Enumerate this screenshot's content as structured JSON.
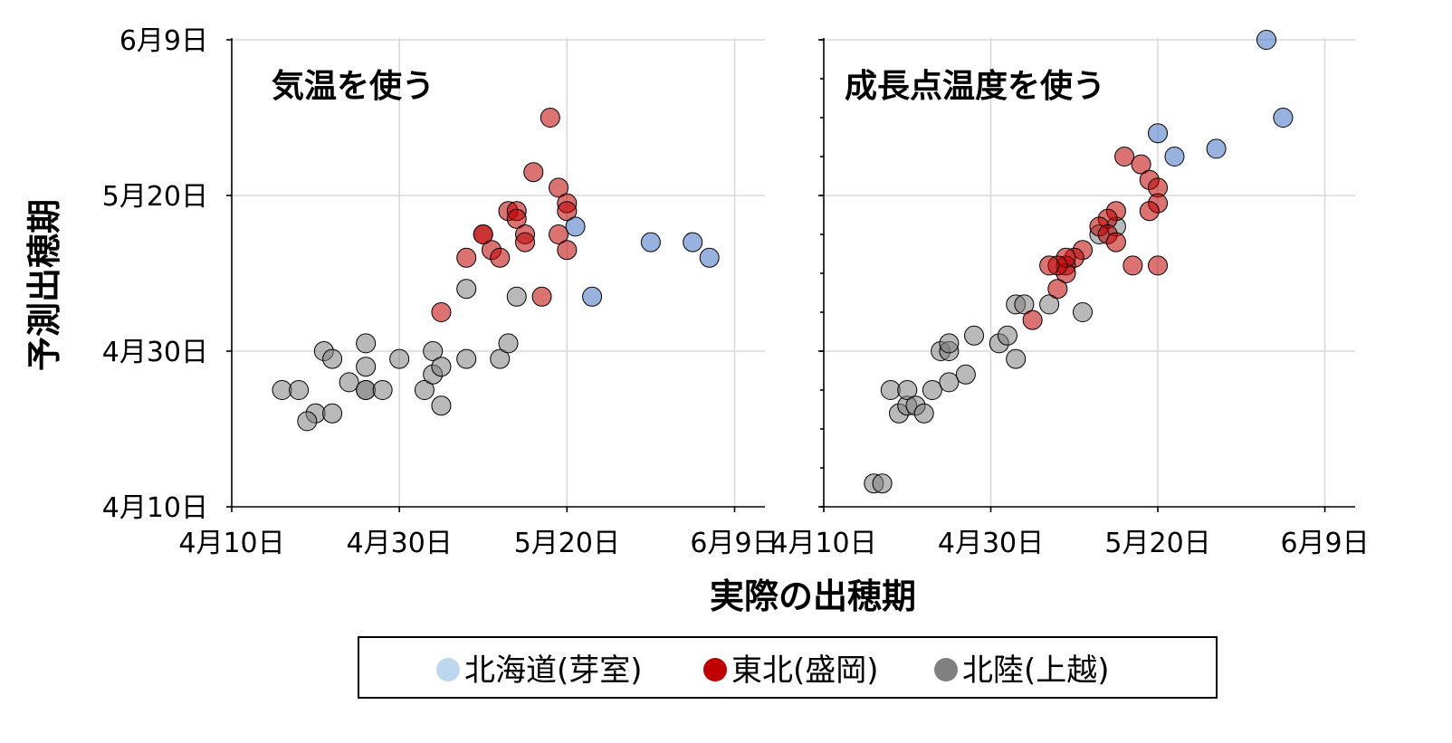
{
  "chart_data": [
    {
      "type": "scatter",
      "title": "気温を使う",
      "xlabel": "実際の出穂期",
      "ylabel": "予測出穂期",
      "x_ticks": [
        "4月10日",
        "4月30日",
        "5月20日",
        "6月9日"
      ],
      "y_ticks": [
        "4月10日",
        "4月30日",
        "5月20日",
        "6月9日"
      ],
      "xlim": [
        "2020-04-10",
        "2020-06-11"
      ],
      "ylim": [
        "2020-04-10",
        "2020-06-09"
      ],
      "grid": true,
      "series": [
        {
          "name": "北海道(芽室)",
          "color": "#4472c4",
          "points": [
            [
              "2020-05-21",
              "2020-05-16"
            ],
            [
              "2020-05-23",
              "2020-05-07"
            ],
            [
              "2020-05-30",
              "2020-05-14"
            ],
            [
              "2020-06-04",
              "2020-05-14"
            ],
            [
              "2020-06-06",
              "2020-05-12"
            ]
          ]
        },
        {
          "name": "東北(盛岡)",
          "color": "#c00000",
          "points": [
            [
              "2020-05-18",
              "2020-05-30"
            ],
            [
              "2020-05-16",
              "2020-05-23"
            ],
            [
              "2020-05-19",
              "2020-05-21"
            ],
            [
              "2020-05-20",
              "2020-05-19"
            ],
            [
              "2020-05-20",
              "2020-05-18"
            ],
            [
              "2020-05-13",
              "2020-05-18"
            ],
            [
              "2020-05-14",
              "2020-05-18"
            ],
            [
              "2020-05-14",
              "2020-05-17"
            ],
            [
              "2020-05-15",
              "2020-05-15"
            ],
            [
              "2020-05-15",
              "2020-05-14"
            ],
            [
              "2020-05-10",
              "2020-05-15"
            ],
            [
              "2020-05-11",
              "2020-05-13"
            ],
            [
              "2020-05-12",
              "2020-05-12"
            ],
            [
              "2020-05-08",
              "2020-05-12"
            ],
            [
              "2020-05-19",
              "2020-05-15"
            ],
            [
              "2020-05-20",
              "2020-05-13"
            ],
            [
              "2020-05-05",
              "2020-05-05"
            ],
            [
              "2020-05-17",
              "2020-05-07"
            ],
            [
              "2020-05-10",
              "2020-05-15"
            ]
          ]
        },
        {
          "name": "北陸(上越)",
          "color": "#808080",
          "points": [
            [
              "2020-04-16",
              "2020-04-25"
            ],
            [
              "2020-04-20",
              "2020-04-22"
            ],
            [
              "2020-04-18",
              "2020-04-25"
            ],
            [
              "2020-04-19",
              "2020-04-21"
            ],
            [
              "2020-04-22",
              "2020-04-22"
            ],
            [
              "2020-04-21",
              "2020-04-30"
            ],
            [
              "2020-04-22",
              "2020-04-29"
            ],
            [
              "2020-04-24",
              "2020-04-26"
            ],
            [
              "2020-04-26",
              "2020-04-25"
            ],
            [
              "2020-04-26",
              "2020-04-25"
            ],
            [
              "2020-04-26",
              "2020-04-28"
            ],
            [
              "2020-04-26",
              "2020-05-01"
            ],
            [
              "2020-04-28",
              "2020-04-25"
            ],
            [
              "2020-04-30",
              "2020-04-29"
            ],
            [
              "2020-05-03",
              "2020-04-25"
            ],
            [
              "2020-05-04",
              "2020-04-27"
            ],
            [
              "2020-05-04",
              "2020-04-30"
            ],
            [
              "2020-05-05",
              "2020-04-28"
            ],
            [
              "2020-05-05",
              "2020-04-23"
            ],
            [
              "2020-05-08",
              "2020-04-29"
            ],
            [
              "2020-05-08",
              "2020-05-08"
            ],
            [
              "2020-05-12",
              "2020-04-29"
            ],
            [
              "2020-05-13",
              "2020-05-01"
            ],
            [
              "2020-05-14",
              "2020-05-07"
            ]
          ]
        }
      ]
    },
    {
      "type": "scatter",
      "title": "成長点温度を使う",
      "xlabel": "実際の出穂期",
      "ylabel": "予測出穂期",
      "x_ticks": [
        "4月10日",
        "4月30日",
        "5月20日",
        "6月9日"
      ],
      "y_ticks": [
        "4月10日",
        "4月30日",
        "5月20日",
        "6月9日"
      ],
      "xlim": [
        "2020-04-10",
        "2020-06-11"
      ],
      "ylim": [
        "2020-04-10",
        "2020-06-09"
      ],
      "grid": true,
      "series": [
        {
          "name": "北海道(芽室)",
          "color": "#4472c4",
          "points": [
            [
              "2020-05-20",
              "2020-05-28"
            ],
            [
              "2020-05-22",
              "2020-05-25"
            ],
            [
              "2020-05-27",
              "2020-05-26"
            ],
            [
              "2020-06-02",
              "2020-06-09"
            ],
            [
              "2020-06-04",
              "2020-05-30"
            ]
          ]
        },
        {
          "name": "東北(盛岡)",
          "color": "#c00000",
          "points": [
            [
              "2020-05-16",
              "2020-05-25"
            ],
            [
              "2020-05-18",
              "2020-05-24"
            ],
            [
              "2020-05-19",
              "2020-05-22"
            ],
            [
              "2020-05-20",
              "2020-05-21"
            ],
            [
              "2020-05-20",
              "2020-05-19"
            ],
            [
              "2020-05-19",
              "2020-05-18"
            ],
            [
              "2020-05-15",
              "2020-05-18"
            ],
            [
              "2020-05-14",
              "2020-05-17"
            ],
            [
              "2020-05-13",
              "2020-05-16"
            ],
            [
              "2020-05-14",
              "2020-05-15"
            ],
            [
              "2020-05-15",
              "2020-05-14"
            ],
            [
              "2020-05-11",
              "2020-05-13"
            ],
            [
              "2020-05-10",
              "2020-05-12"
            ],
            [
              "2020-05-09",
              "2020-05-11"
            ],
            [
              "2020-05-09",
              "2020-05-10"
            ],
            [
              "2020-05-09",
              "2020-05-12"
            ],
            [
              "2020-05-08",
              "2020-05-11"
            ],
            [
              "2020-05-07",
              "2020-05-11"
            ],
            [
              "2020-05-17",
              "2020-05-11"
            ],
            [
              "2020-05-20",
              "2020-05-11"
            ],
            [
              "2020-05-05",
              "2020-05-04"
            ],
            [
              "2020-05-08",
              "2020-05-08"
            ]
          ]
        },
        {
          "name": "北陸(上越)",
          "color": "#808080",
          "points": [
            [
              "2020-04-16",
              "2020-04-13"
            ],
            [
              "2020-04-17",
              "2020-04-13"
            ],
            [
              "2020-04-18",
              "2020-04-25"
            ],
            [
              "2020-04-19",
              "2020-04-22"
            ],
            [
              "2020-04-20",
              "2020-04-23"
            ],
            [
              "2020-04-20",
              "2020-04-25"
            ],
            [
              "2020-04-21",
              "2020-04-23"
            ],
            [
              "2020-04-22",
              "2020-04-22"
            ],
            [
              "2020-04-23",
              "2020-04-25"
            ],
            [
              "2020-04-24",
              "2020-04-30"
            ],
            [
              "2020-04-25",
              "2020-04-30"
            ],
            [
              "2020-04-25",
              "2020-04-26"
            ],
            [
              "2020-04-27",
              "2020-04-27"
            ],
            [
              "2020-04-25",
              "2020-05-01"
            ],
            [
              "2020-04-28",
              "2020-05-02"
            ],
            [
              "2020-05-01",
              "2020-05-01"
            ],
            [
              "2020-05-02",
              "2020-05-02"
            ],
            [
              "2020-05-03",
              "2020-04-29"
            ],
            [
              "2020-05-03",
              "2020-05-06"
            ],
            [
              "2020-05-04",
              "2020-05-06"
            ],
            [
              "2020-05-07",
              "2020-05-06"
            ],
            [
              "2020-05-11",
              "2020-05-05"
            ],
            [
              "2020-05-13",
              "2020-05-15"
            ],
            [
              "2020-05-15",
              "2020-05-16"
            ]
          ]
        }
      ]
    }
  ],
  "legend": {
    "items": [
      {
        "label": "北海道(芽室)",
        "color": "#bdd7ee"
      },
      {
        "label": "東北(盛岡)",
        "color": "#c00000"
      },
      {
        "label": "北陸(上越)",
        "color": "#808080"
      }
    ]
  }
}
